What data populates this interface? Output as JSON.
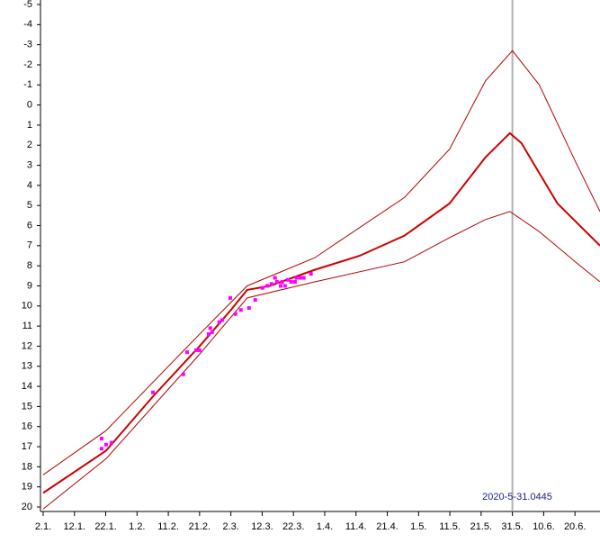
{
  "chart_data": {
    "type": "line",
    "ylim": [
      20,
      -5
    ],
    "yticks": [
      20,
      19,
      18,
      17,
      16,
      15,
      14,
      13,
      12,
      11,
      10,
      9,
      8,
      7,
      6,
      5,
      4,
      3,
      2,
      1,
      0,
      -1,
      -2,
      -3,
      -4,
      -5
    ],
    "xlim": [
      2,
      180
    ],
    "xticks": [
      {
        "value": 2,
        "label": "2.1."
      },
      {
        "value": 12,
        "label": "12.1."
      },
      {
        "value": 22,
        "label": "22.1."
      },
      {
        "value": 32,
        "label": "1.2."
      },
      {
        "value": 42,
        "label": "11.2."
      },
      {
        "value": 52,
        "label": "21.2."
      },
      {
        "value": 62,
        "label": "2.3."
      },
      {
        "value": 72,
        "label": "12.3."
      },
      {
        "value": 82,
        "label": "22.3."
      },
      {
        "value": 92,
        "label": "1.4."
      },
      {
        "value": 102,
        "label": "11.4."
      },
      {
        "value": 112,
        "label": "21.4."
      },
      {
        "value": 122,
        "label": "1.5."
      },
      {
        "value": 132,
        "label": "11.5."
      },
      {
        "value": 142,
        "label": "21.5."
      },
      {
        "value": 152,
        "label": "31.5."
      },
      {
        "value": 162,
        "label": "10.6."
      },
      {
        "value": 172,
        "label": "20.6."
      }
    ],
    "vline": 152,
    "vline_color": "#b0b0b0",
    "annotation": "2020-5-31.0445",
    "series": [
      {
        "type": "line",
        "color": "#b00000",
        "line_width": 1,
        "x": [
          2,
          22.1,
          52,
          67.2,
          88.8,
          117.5,
          131.9,
          143.4,
          152,
          160.6,
          172.1,
          180
        ],
        "values": [
          18.4,
          16.2,
          11.4,
          9.0,
          7.6,
          4.6,
          2.2,
          -1.2,
          -2.7,
          -1.0,
          2.8,
          5.3
        ]
      },
      {
        "type": "line",
        "color": "#b00000",
        "line_width": 1,
        "x": [
          2,
          22.1,
          52,
          67.2,
          88.8,
          117.5,
          131.9,
          143.4,
          151.2,
          160.6,
          172.1,
          180
        ],
        "values": [
          20.1,
          17.6,
          12.4,
          9.6,
          8.8,
          7.8,
          6.6,
          5.7,
          5.3,
          6.3,
          7.8,
          8.8
        ]
      },
      {
        "type": "line",
        "color": "#cc0000",
        "line_width": 2,
        "x": [
          2,
          22.1,
          37.1,
          52,
          62,
          67.2,
          74.4,
          88.8,
          103.2,
          117.5,
          131.9,
          143.4,
          151.2,
          154.9,
          166.4,
          180
        ],
        "values": [
          19.3,
          17.2,
          14.5,
          12.0,
          10.2,
          9.2,
          9.0,
          8.2,
          7.5,
          6.5,
          4.9,
          2.6,
          1.4,
          1.9,
          4.9,
          7.0
        ]
      },
      {
        "type": "scatter",
        "color": "#ff00ff",
        "x": [
          20.7,
          20.7,
          22.1,
          23.8,
          37.1,
          46.8,
          48.0,
          50.9,
          52.0,
          54.9,
          55.4,
          56.0,
          58.3,
          59.2,
          61.8,
          63.5,
          65.2,
          67.8,
          69.8,
          72.1,
          73.6,
          75.0,
          76.1,
          76.7,
          77.9,
          78.4,
          79.3,
          80.2,
          81.3,
          82.5,
          83.0,
          84.2,
          85.3,
          87.6
        ],
        "values": [
          16.6,
          17.1,
          16.9,
          16.8,
          14.3,
          13.4,
          12.3,
          12.2,
          12.2,
          11.4,
          11.1,
          11.3,
          10.8,
          10.7,
          9.6,
          10.4,
          10.2,
          10.1,
          9.7,
          9.1,
          9.0,
          8.9,
          8.6,
          8.8,
          9.0,
          8.8,
          9.0,
          8.7,
          8.8,
          8.8,
          8.6,
          8.6,
          8.6,
          8.4
        ]
      }
    ]
  }
}
